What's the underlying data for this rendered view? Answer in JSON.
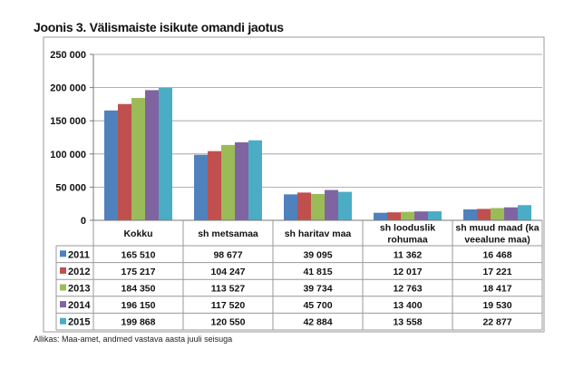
{
  "title": "Joonis 3. Välismaiste isikute omandi jaotus",
  "source": "Allikas: Maa-amet, andmed vastava aasta juuli seisuga",
  "colors": [
    "#4F81BD",
    "#C0504D",
    "#9BBB59",
    "#8064A2",
    "#4BACC6"
  ],
  "chart_data": {
    "type": "bar",
    "categories": [
      "Kokku",
      "sh metsamaa",
      "sh haritav maa",
      "sh looduslik rohumaa",
      "sh muud maad (ka veealune maa)"
    ],
    "category_lines": [
      [
        "Kokku"
      ],
      [
        "sh metsamaa"
      ],
      [
        "sh haritav maa"
      ],
      [
        "sh looduslik",
        "rohumaa"
      ],
      [
        "sh muud maad (ka",
        "veealune maa)"
      ]
    ],
    "series": [
      {
        "name": "2011",
        "values": [
          165510,
          98677,
          39095,
          11362,
          16468
        ],
        "labels": [
          "165 510",
          "98 677",
          "39 095",
          "11 362",
          "16 468"
        ]
      },
      {
        "name": "2012",
        "values": [
          175217,
          104247,
          41815,
          12017,
          17221
        ],
        "labels": [
          "175 217",
          "104 247",
          "41 815",
          "12 017",
          "17 221"
        ]
      },
      {
        "name": "2013",
        "values": [
          184350,
          113527,
          39734,
          12763,
          18417
        ],
        "labels": [
          "184 350",
          "113 527",
          "39 734",
          "12 763",
          "18 417"
        ]
      },
      {
        "name": "2014",
        "values": [
          196150,
          117520,
          45700,
          13400,
          19530
        ],
        "labels": [
          "196 150",
          "117 520",
          "45 700",
          "13 400",
          "19 530"
        ]
      },
      {
        "name": "2015",
        "values": [
          199868,
          120550,
          42884,
          13558,
          22877
        ],
        "labels": [
          "199 868",
          "120 550",
          "42 884",
          "13 558",
          "22 877"
        ]
      }
    ],
    "ylim": [
      0,
      250000
    ],
    "yticks": [
      0,
      50000,
      100000,
      150000,
      200000,
      250000
    ],
    "ytick_labels": [
      "0",
      "50 000",
      "100 000",
      "150 000",
      "200 000",
      "250 000"
    ],
    "grid": true,
    "legend": "data-table"
  }
}
